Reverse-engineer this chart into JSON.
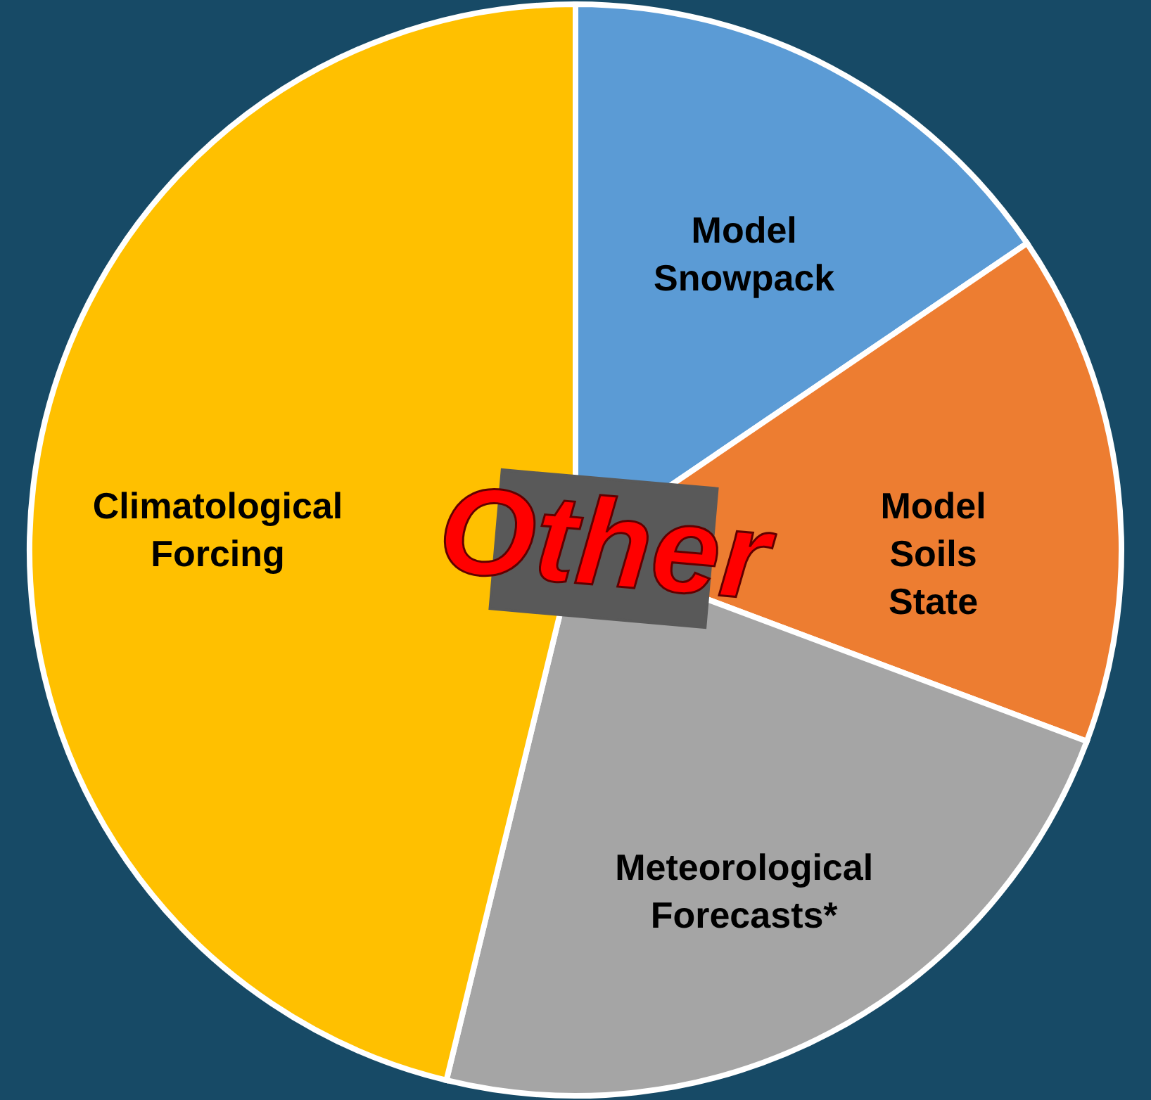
{
  "chart_data": {
    "type": "pie",
    "categories": [
      "Model Snowpack",
      "Model Soils State",
      "Meteorological Forecasts*",
      "Climatological Forcing"
    ],
    "values": [
      15.5,
      15.2,
      23.1,
      46.2
    ],
    "colors": [
      "#5b9bd5",
      "#ed7d31",
      "#a5a5a5",
      "#ffc000"
    ],
    "annotations": [
      "Other"
    ]
  }
}
